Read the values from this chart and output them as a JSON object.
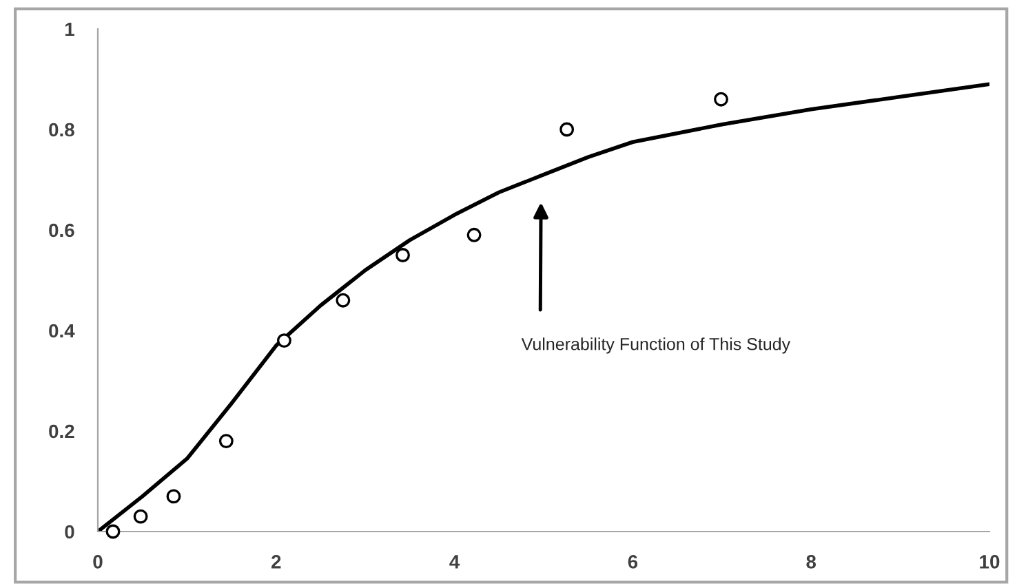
{
  "chart_data": {
    "type": "scatter",
    "series": [
      {
        "color": "#000000",
        "marker": "circle",
        "x": [
          0.17,
          0.48,
          0.85,
          1.44,
          2.09,
          2.75,
          3.42,
          4.22,
          5.26,
          6.99
        ],
        "values": [
          0.0,
          0.03,
          0.07,
          0.18,
          0.38,
          0.46,
          0.55,
          0.59,
          0.8,
          0.86
        ]
      },
      {
        "type": "line",
        "color": "#000000",
        "marker": "none",
        "line_style": "solid",
        "x": [
          0,
          0.5,
          1,
          1.5,
          2,
          2.5,
          3,
          3.5,
          4,
          4.5,
          5,
          5.5,
          6,
          7,
          8,
          9,
          10
        ],
        "values": [
          0,
          0.07,
          0.145,
          0.255,
          0.37,
          0.45,
          0.52,
          0.58,
          0.63,
          0.675,
          0.71,
          0.745,
          0.775,
          0.81,
          0.84,
          0.865,
          0.89
        ]
      }
    ],
    "xlim": [
      0,
      10
    ],
    "ylim": [
      0,
      1
    ],
    "xticks": [
      0,
      2,
      4,
      6,
      8,
      10
    ],
    "yticks": [
      0,
      0.2,
      0.4,
      0.6,
      0.8,
      1
    ],
    "grid": false,
    "legend": false,
    "annotations": [
      "Vulnerability Function of This Study"
    ]
  }
}
